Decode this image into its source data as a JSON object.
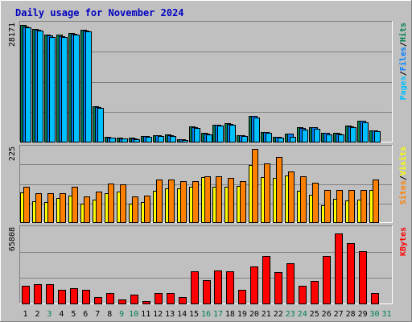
{
  "title": "Daily usage for November 2024",
  "colors": {
    "title": "#0000c0",
    "panel_bg": "#c0c0c0",
    "page_bg": "#ffffff",
    "pages": "#00c0ff",
    "files": "#0080ff",
    "hits": "#00804c",
    "sites": "#ff8000",
    "visits": "#ffff00",
    "kbytes": "#ff0000",
    "weekday_label": "#000000",
    "weekend_label": "#00804c"
  },
  "chart_data": [
    {
      "type": "bar",
      "panel": "hits-files-pages",
      "y_tick_label": "28171",
      "right_label_parts": [
        {
          "text": "Pages",
          "color_key": "pages"
        },
        {
          "text": "/",
          "color_key": "weekday_label"
        },
        {
          "text": "Files",
          "color_key": "files"
        },
        {
          "text": "/",
          "color_key": "weekday_label"
        },
        {
          "text": "Hits",
          "color_key": "hits"
        }
      ],
      "ymax": 28171,
      "categories": [
        "1",
        "2",
        "3",
        "4",
        "5",
        "6",
        "7",
        "8",
        "9",
        "10",
        "11",
        "12",
        "13",
        "14",
        "15",
        "16",
        "17",
        "18",
        "19",
        "20",
        "21",
        "22",
        "23",
        "24",
        "25",
        "26",
        "27",
        "28",
        "29",
        "30",
        "31"
      ],
      "series": [
        {
          "name": "Hits",
          "color_key": "hits",
          "values": [
            28100,
            27200,
            25900,
            25800,
            26200,
            27100,
            8500,
            1100,
            950,
            900,
            1400,
            1600,
            1700,
            600,
            3600,
            2100,
            4100,
            4400,
            1600,
            6300,
            2400,
            1200,
            2000,
            3400,
            3500,
            2200,
            2100,
            3800,
            5100,
            2800,
            0
          ]
        },
        {
          "name": "Files",
          "color_key": "files",
          "values": [
            27800,
            27000,
            25600,
            25500,
            26000,
            26900,
            8300,
            1000,
            850,
            800,
            1300,
            1500,
            1600,
            500,
            3500,
            2000,
            4000,
            4300,
            1500,
            6200,
            2300,
            1100,
            1900,
            3300,
            3400,
            2100,
            2000,
            3700,
            5000,
            2700,
            0
          ]
        },
        {
          "name": "Pages",
          "color_key": "pages",
          "values": [
            27600,
            26800,
            25300,
            25300,
            25800,
            26700,
            8100,
            900,
            700,
            650,
            1100,
            1300,
            1400,
            400,
            3300,
            1800,
            3800,
            4100,
            1300,
            5900,
            2100,
            900,
            1200,
            3000,
            3200,
            1800,
            1700,
            3500,
            4700,
            2500,
            0
          ]
        }
      ]
    },
    {
      "type": "bar",
      "panel": "visits-sites",
      "y_tick_label": "225",
      "right_label_parts": [
        {
          "text": "Sites",
          "color_key": "sites"
        },
        {
          "text": "/",
          "color_key": "weekday_label"
        },
        {
          "text": "Visits",
          "color_key": "visits"
        }
      ],
      "ymax": 225,
      "categories": [
        "1",
        "2",
        "3",
        "4",
        "5",
        "6",
        "7",
        "8",
        "9",
        "10",
        "11",
        "12",
        "13",
        "14",
        "15",
        "16",
        "17",
        "18",
        "19",
        "20",
        "21",
        "22",
        "23",
        "24",
        "25",
        "26",
        "27",
        "28",
        "29",
        "30",
        "31"
      ],
      "series": [
        {
          "name": "Visits",
          "color_key": "visits",
          "values": [
            92,
            65,
            62,
            73,
            82,
            58,
            70,
            88,
            93,
            58,
            62,
            96,
            104,
            104,
            108,
            138,
            108,
            110,
            111,
            175,
            139,
            135,
            144,
            97,
            84,
            53,
            72,
            67,
            70,
            100,
            0
          ]
        },
        {
          "name": "Sites",
          "color_key": "sites",
          "values": [
            110,
            88,
            88,
            88,
            108,
            78,
            95,
            118,
            115,
            78,
            82,
            130,
            130,
            127,
            127,
            140,
            140,
            135,
            127,
            224,
            180,
            200,
            155,
            142,
            120,
            98,
            98,
            98,
            100,
            130,
            0
          ]
        }
      ]
    },
    {
      "type": "bar",
      "panel": "kbytes",
      "y_tick_label": "65808",
      "right_label_parts": [
        {
          "text": "KBytes",
          "color_key": "kbytes"
        }
      ],
      "ymax": 65808,
      "categories": [
        "1",
        "2",
        "3",
        "4",
        "5",
        "6",
        "7",
        "8",
        "9",
        "10",
        "11",
        "12",
        "13",
        "14",
        "15",
        "16",
        "17",
        "18",
        "19",
        "20",
        "21",
        "22",
        "23",
        "24",
        "25",
        "26",
        "27",
        "28",
        "29",
        "30",
        "31"
      ],
      "series": [
        {
          "name": "KBytes",
          "color_key": "kbytes",
          "values": [
            15500,
            17000,
            17000,
            12500,
            13300,
            12300,
            5800,
            9000,
            3600,
            8000,
            2000,
            9600,
            9600,
            5800,
            28600,
            20500,
            29300,
            28900,
            12000,
            32800,
            42000,
            27800,
            36000,
            15500,
            20000,
            42000,
            62000,
            54000,
            46600,
            9600,
            0
          ]
        }
      ]
    }
  ],
  "x_labels": [
    {
      "text": "1",
      "weekend": false
    },
    {
      "text": "2",
      "weekend": false
    },
    {
      "text": "3",
      "weekend": true
    },
    {
      "text": "4",
      "weekend": false
    },
    {
      "text": "5",
      "weekend": false
    },
    {
      "text": "6",
      "weekend": false
    },
    {
      "text": "7",
      "weekend": false
    },
    {
      "text": "8",
      "weekend": false
    },
    {
      "text": "9",
      "weekend": true
    },
    {
      "text": "10",
      "weekend": true
    },
    {
      "text": "11",
      "weekend": false
    },
    {
      "text": "12",
      "weekend": false
    },
    {
      "text": "13",
      "weekend": false
    },
    {
      "text": "14",
      "weekend": false
    },
    {
      "text": "15",
      "weekend": false
    },
    {
      "text": "16",
      "weekend": true
    },
    {
      "text": "17",
      "weekend": true
    },
    {
      "text": "18",
      "weekend": false
    },
    {
      "text": "19",
      "weekend": false
    },
    {
      "text": "20",
      "weekend": false
    },
    {
      "text": "21",
      "weekend": false
    },
    {
      "text": "22",
      "weekend": false
    },
    {
      "text": "23",
      "weekend": true
    },
    {
      "text": "24",
      "weekend": true
    },
    {
      "text": "25",
      "weekend": false
    },
    {
      "text": "26",
      "weekend": false
    },
    {
      "text": "27",
      "weekend": false
    },
    {
      "text": "28",
      "weekend": false
    },
    {
      "text": "29",
      "weekend": false
    },
    {
      "text": "30",
      "weekend": true
    },
    {
      "text": "31",
      "weekend": true
    }
  ]
}
